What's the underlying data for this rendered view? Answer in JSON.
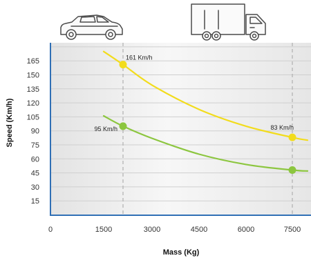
{
  "chart_data": {
    "type": "line",
    "xlabel": "Mass (Kg)",
    "ylabel": "Speed (Km/h)",
    "x_ticks": [
      0,
      1500,
      3000,
      4500,
      6000,
      7500
    ],
    "y_ticks": [
      15,
      30,
      45,
      60,
      75,
      90,
      105,
      120,
      135,
      150,
      165
    ],
    "grid": true,
    "reference_lines_x": [
      2100,
      7500
    ],
    "series": [
      {
        "color": "#f2dc1c",
        "x": [
          1500,
          2100,
          3000,
          4500,
          6000,
          7500,
          8000
        ],
        "y": [
          175,
          161,
          139,
          113,
          95,
          83,
          80
        ],
        "highlight": [
          {
            "x": 2100,
            "y": 161,
            "label": "161 Km/h"
          },
          {
            "x": 7500,
            "y": 83,
            "label": "83 Km/h"
          }
        ]
      },
      {
        "color": "#8cc63f",
        "x": [
          1500,
          2100,
          3000,
          4500,
          6000,
          7500,
          8000
        ],
        "y": [
          106,
          95,
          82,
          65,
          54,
          48,
          47
        ],
        "highlight": [
          {
            "x": 2100,
            "y": 95,
            "label": "95 Km/h"
          },
          {
            "x": 7500,
            "y": 48,
            "label": ""
          }
        ]
      }
    ],
    "icons": [
      "car-icon",
      "truck-icon"
    ]
  }
}
